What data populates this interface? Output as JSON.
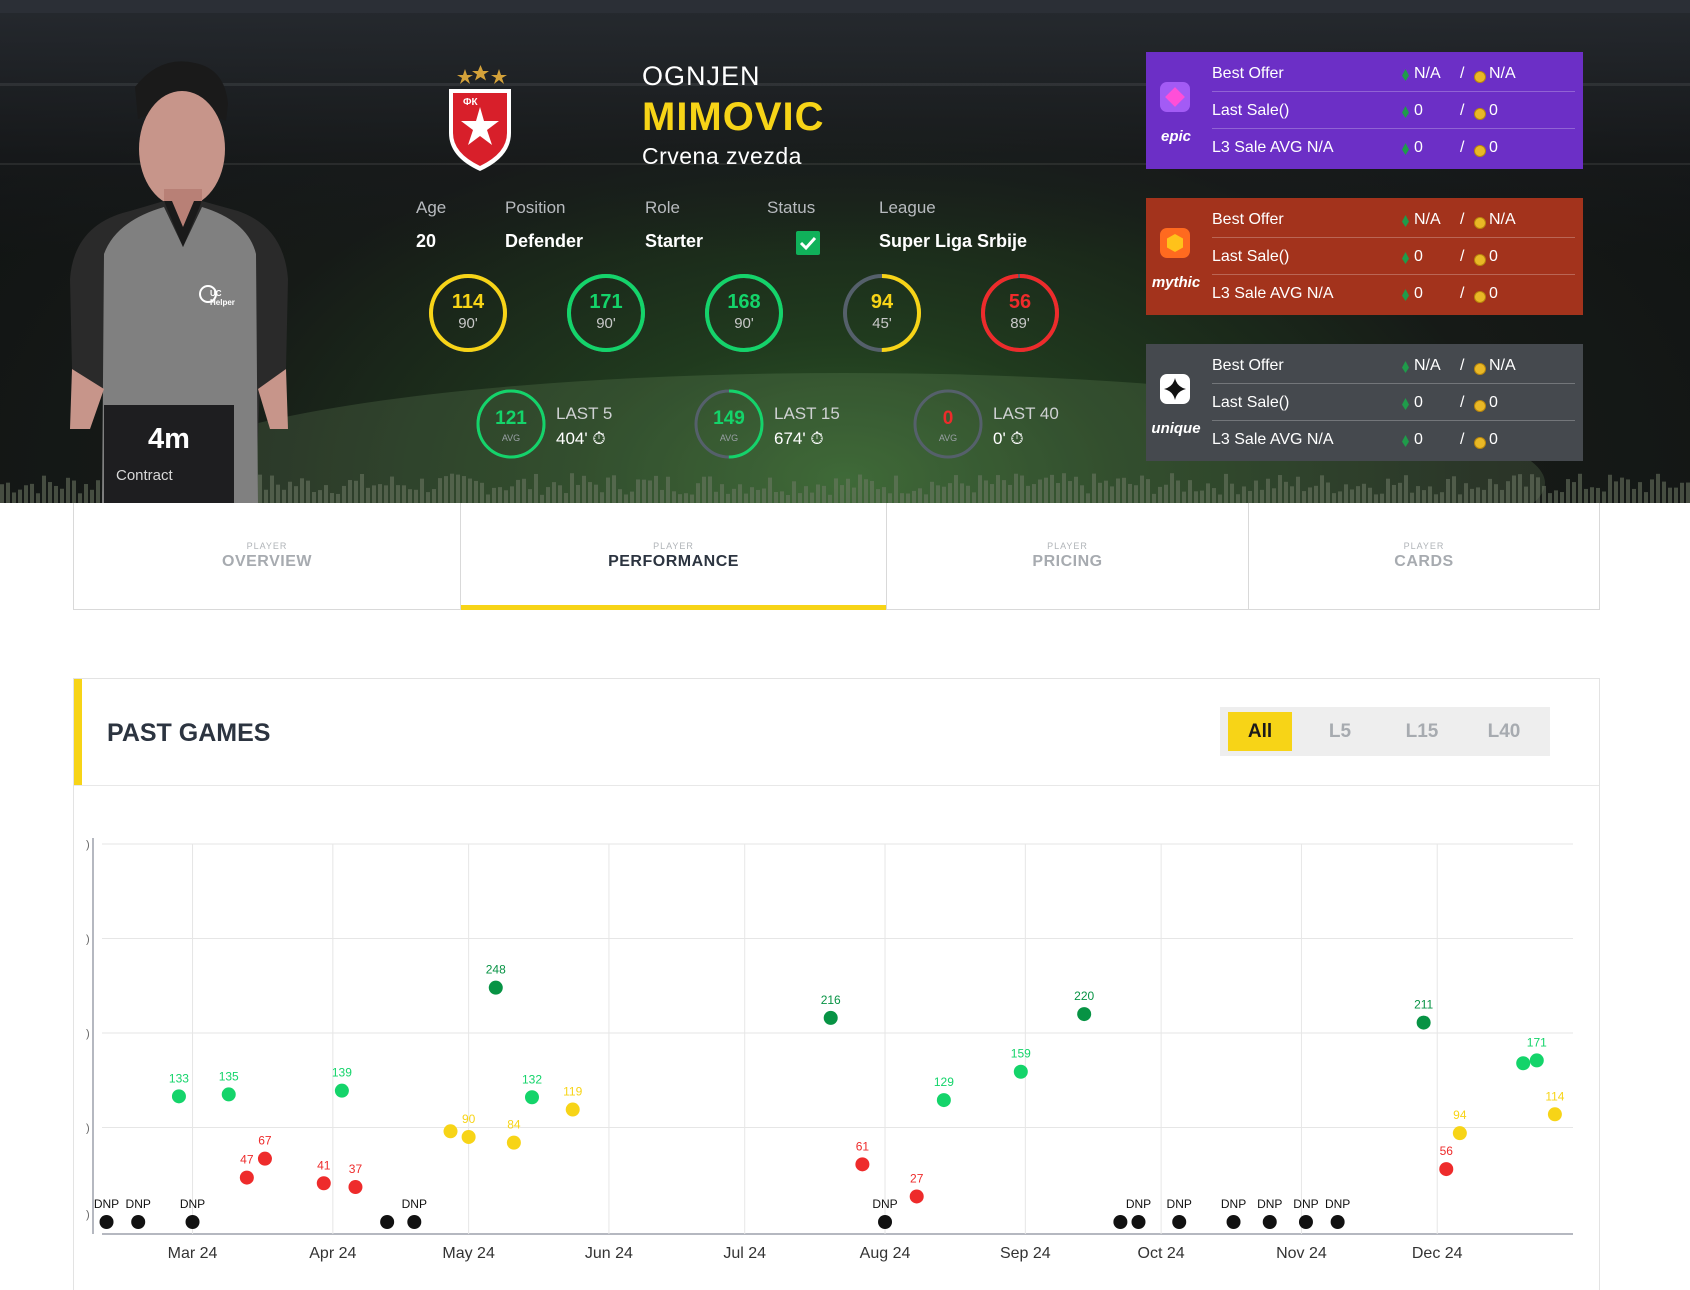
{
  "player": {
    "first_name": "OGNJEN",
    "last_name": "MIMOVIC",
    "club": "Crvena zvezda",
    "contract": {
      "value": "4m",
      "label": "Contract"
    },
    "info": {
      "age_label": "Age",
      "age": "20",
      "position_label": "Position",
      "position": "Defender",
      "role_label": "Role",
      "role": "Starter",
      "status_label": "Status",
      "status": "checked",
      "league_label": "League",
      "league": "Super Liga Srbije"
    }
  },
  "recent_scores": [
    {
      "score": "114",
      "minutes": "90'",
      "color": "#f7d417",
      "fraction": 1.0
    },
    {
      "score": "171",
      "minutes": "90'",
      "color": "#14d46a",
      "fraction": 1.0
    },
    {
      "score": "168",
      "minutes": "90'",
      "color": "#14d46a",
      "fraction": 1.0
    },
    {
      "score": "94",
      "minutes": "45'",
      "color": "#f7d417",
      "fraction": 0.5
    },
    {
      "score": "56",
      "minutes": "89'",
      "color": "#ee2b2b",
      "fraction": 0.99
    }
  ],
  "averages": [
    {
      "value": "121",
      "avg_label": "AVG",
      "period": "LAST 5",
      "minutes": "404'",
      "color": "#14d46a",
      "fraction": 1.0
    },
    {
      "value": "149",
      "avg_label": "AVG",
      "period": "LAST 15",
      "minutes": "674'",
      "color": "#14d46a",
      "fraction": 0.5
    },
    {
      "value": "0",
      "avg_label": "AVG",
      "period": "LAST 40",
      "minutes": "0'",
      "color": "#ee2b2b",
      "fraction": 0.0
    }
  ],
  "rarities": [
    {
      "name": "epic",
      "rows": [
        {
          "label": "Best Offer",
          "eth": "N/A",
          "coin": "N/A"
        },
        {
          "label": "Last Sale()",
          "eth": "0",
          "coin": "0"
        },
        {
          "label": "L3 Sale AVG N/A",
          "eth": "0",
          "coin": "0"
        }
      ]
    },
    {
      "name": "mythic",
      "rows": [
        {
          "label": "Best Offer",
          "eth": "N/A",
          "coin": "N/A"
        },
        {
          "label": "Last Sale()",
          "eth": "0",
          "coin": "0"
        },
        {
          "label": "L3 Sale AVG N/A",
          "eth": "0",
          "coin": "0"
        }
      ]
    },
    {
      "name": "unique",
      "rows": [
        {
          "label": "Best Offer",
          "eth": "N/A",
          "coin": "N/A"
        },
        {
          "label": "Last Sale()",
          "eth": "0",
          "coin": "0"
        },
        {
          "label": "L3 Sale AVG N/A",
          "eth": "0",
          "coin": "0"
        }
      ]
    }
  ],
  "tabs": [
    {
      "small": "PLAYER",
      "label": "OVERVIEW",
      "active": false
    },
    {
      "small": "PLAYER",
      "label": "PERFORMANCE",
      "active": true
    },
    {
      "small": "PLAYER",
      "label": "PRICING",
      "active": false
    },
    {
      "small": "PLAYER",
      "label": "CARDS",
      "active": false
    }
  ],
  "past_games": {
    "title": "PAST GAMES",
    "filters": [
      "All",
      "L5",
      "L15",
      "L40"
    ],
    "active_filter": "All"
  },
  "colors": {
    "accent": "#f7d417",
    "green": "#14d46a",
    "dark_green": "#079344",
    "yellow": "#f7d417",
    "red": "#ee2b2b",
    "dnp": "#111111"
  },
  "chart_data": {
    "type": "scatter",
    "title": "PAST GAMES",
    "xlabel": "",
    "ylabel": "",
    "x_ticks": [
      "Mar 24",
      "Apr 24",
      "May 24",
      "Jun 24",
      "Jul 24",
      "Aug 24",
      "Sep 24",
      "Oct 24",
      "Nov 24",
      "Dec 24"
    ],
    "x_range": [
      "2024-02-10",
      "2024-12-31"
    ],
    "ylim": [
      0,
      400
    ],
    "grid": true,
    "legend": "none",
    "points": [
      {
        "date": "2024-02-11",
        "value": 0,
        "label": "DNP",
        "color": "dnp"
      },
      {
        "date": "2024-02-18",
        "value": 0,
        "label": "DNP",
        "color": "dnp"
      },
      {
        "date": "2024-02-27",
        "value": 133,
        "label": "133",
        "color": "green"
      },
      {
        "date": "2024-03-01",
        "value": 0,
        "label": "DNP",
        "color": "dnp"
      },
      {
        "date": "2024-03-09",
        "value": 135,
        "label": "135",
        "color": "green"
      },
      {
        "date": "2024-03-13",
        "value": 47,
        "label": "47",
        "color": "red"
      },
      {
        "date": "2024-03-17",
        "value": 67,
        "label": "67",
        "color": "red"
      },
      {
        "date": "2024-03-30",
        "value": 41,
        "label": "41",
        "color": "red"
      },
      {
        "date": "2024-04-03",
        "value": 139,
        "label": "139",
        "color": "green"
      },
      {
        "date": "2024-04-06",
        "value": 37,
        "label": "37",
        "color": "red"
      },
      {
        "date": "2024-04-13",
        "value": 0,
        "label": "",
        "color": "dnp"
      },
      {
        "date": "2024-04-19",
        "value": 0,
        "label": "DNP",
        "color": "dnp"
      },
      {
        "date": "2024-04-27",
        "value": 96,
        "label": "",
        "color": "yellow"
      },
      {
        "date": "2024-05-01",
        "value": 90,
        "label": "90",
        "color": "yellow"
      },
      {
        "date": "2024-05-07",
        "value": 248,
        "label": "248",
        "color": "dark_green"
      },
      {
        "date": "2024-05-11",
        "value": 84,
        "label": "84",
        "color": "yellow"
      },
      {
        "date": "2024-05-15",
        "value": 132,
        "label": "132",
        "color": "green"
      },
      {
        "date": "2024-05-24",
        "value": 119,
        "label": "119",
        "color": "yellow"
      },
      {
        "date": "2024-07-20",
        "value": 216,
        "label": "216",
        "color": "dark_green"
      },
      {
        "date": "2024-07-27",
        "value": 61,
        "label": "61",
        "color": "red"
      },
      {
        "date": "2024-08-01",
        "value": 0,
        "label": "DNP",
        "color": "dnp"
      },
      {
        "date": "2024-08-08",
        "value": 27,
        "label": "27",
        "color": "red"
      },
      {
        "date": "2024-08-14",
        "value": 129,
        "label": "129",
        "color": "green"
      },
      {
        "date": "2024-08-31",
        "value": 159,
        "label": "159",
        "color": "green"
      },
      {
        "date": "2024-09-14",
        "value": 220,
        "label": "220",
        "color": "dark_green"
      },
      {
        "date": "2024-09-22",
        "value": 0,
        "label": "",
        "color": "dnp"
      },
      {
        "date": "2024-09-26",
        "value": 0,
        "label": "DNP",
        "color": "dnp"
      },
      {
        "date": "2024-10-05",
        "value": 0,
        "label": "DNP",
        "color": "dnp"
      },
      {
        "date": "2024-10-17",
        "value": 0,
        "label": "DNP",
        "color": "dnp"
      },
      {
        "date": "2024-10-25",
        "value": 0,
        "label": "DNP",
        "color": "dnp"
      },
      {
        "date": "2024-11-02",
        "value": 0,
        "label": "DNP",
        "color": "dnp"
      },
      {
        "date": "2024-11-09",
        "value": 0,
        "label": "DNP",
        "color": "dnp"
      },
      {
        "date": "2024-11-28",
        "value": 211,
        "label": "211",
        "color": "dark_green"
      },
      {
        "date": "2024-12-03",
        "value": 56,
        "label": "56",
        "color": "red"
      },
      {
        "date": "2024-12-06",
        "value": 94,
        "label": "94",
        "color": "yellow"
      },
      {
        "date": "2024-12-20",
        "value": 168,
        "label": "",
        "color": "green"
      },
      {
        "date": "2024-12-23",
        "value": 171,
        "label": "171",
        "color": "green"
      },
      {
        "date": "2024-12-27",
        "value": 114,
        "label": "114",
        "color": "yellow"
      }
    ]
  }
}
